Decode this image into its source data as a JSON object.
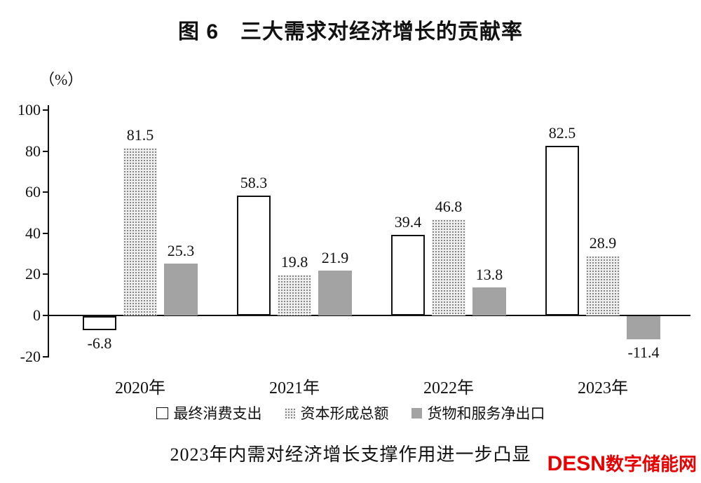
{
  "title": "图 6　三大需求对经济增长的贡献率",
  "caption": "2023年内需对经济增长支撑作用进一步凸显",
  "watermark": {
    "latin": "DESN",
    "cjk": "数字储能网",
    "color": "#e60000"
  },
  "chart_data": {
    "type": "bar",
    "title": "图 6　三大需求对经济增长的贡献率",
    "unit_label": "（%）",
    "categories": [
      "2020年",
      "2021年",
      "2022年",
      "2023年"
    ],
    "series": [
      {
        "name": "最终消费支出",
        "style": "outline",
        "values": [
          -6.8,
          58.3,
          39.4,
          82.5
        ]
      },
      {
        "name": "资本形成总额",
        "style": "dotted",
        "values": [
          81.5,
          19.8,
          46.8,
          28.9
        ]
      },
      {
        "name": "货物和服务净出口",
        "style": "solid",
        "values": [
          25.3,
          21.9,
          13.8,
          -11.4
        ]
      }
    ],
    "ylim": [
      -20,
      100
    ],
    "yticks": [
      100,
      80,
      60,
      40,
      20,
      0,
      -20
    ],
    "grid": false,
    "legend_position": "bottom",
    "colors": {
      "outline_bar_fill": "#ffffff",
      "outline_bar_border": "#111111",
      "dotted_bar": "#7e7e7e",
      "solid_bar": "#a3a3a3"
    }
  }
}
